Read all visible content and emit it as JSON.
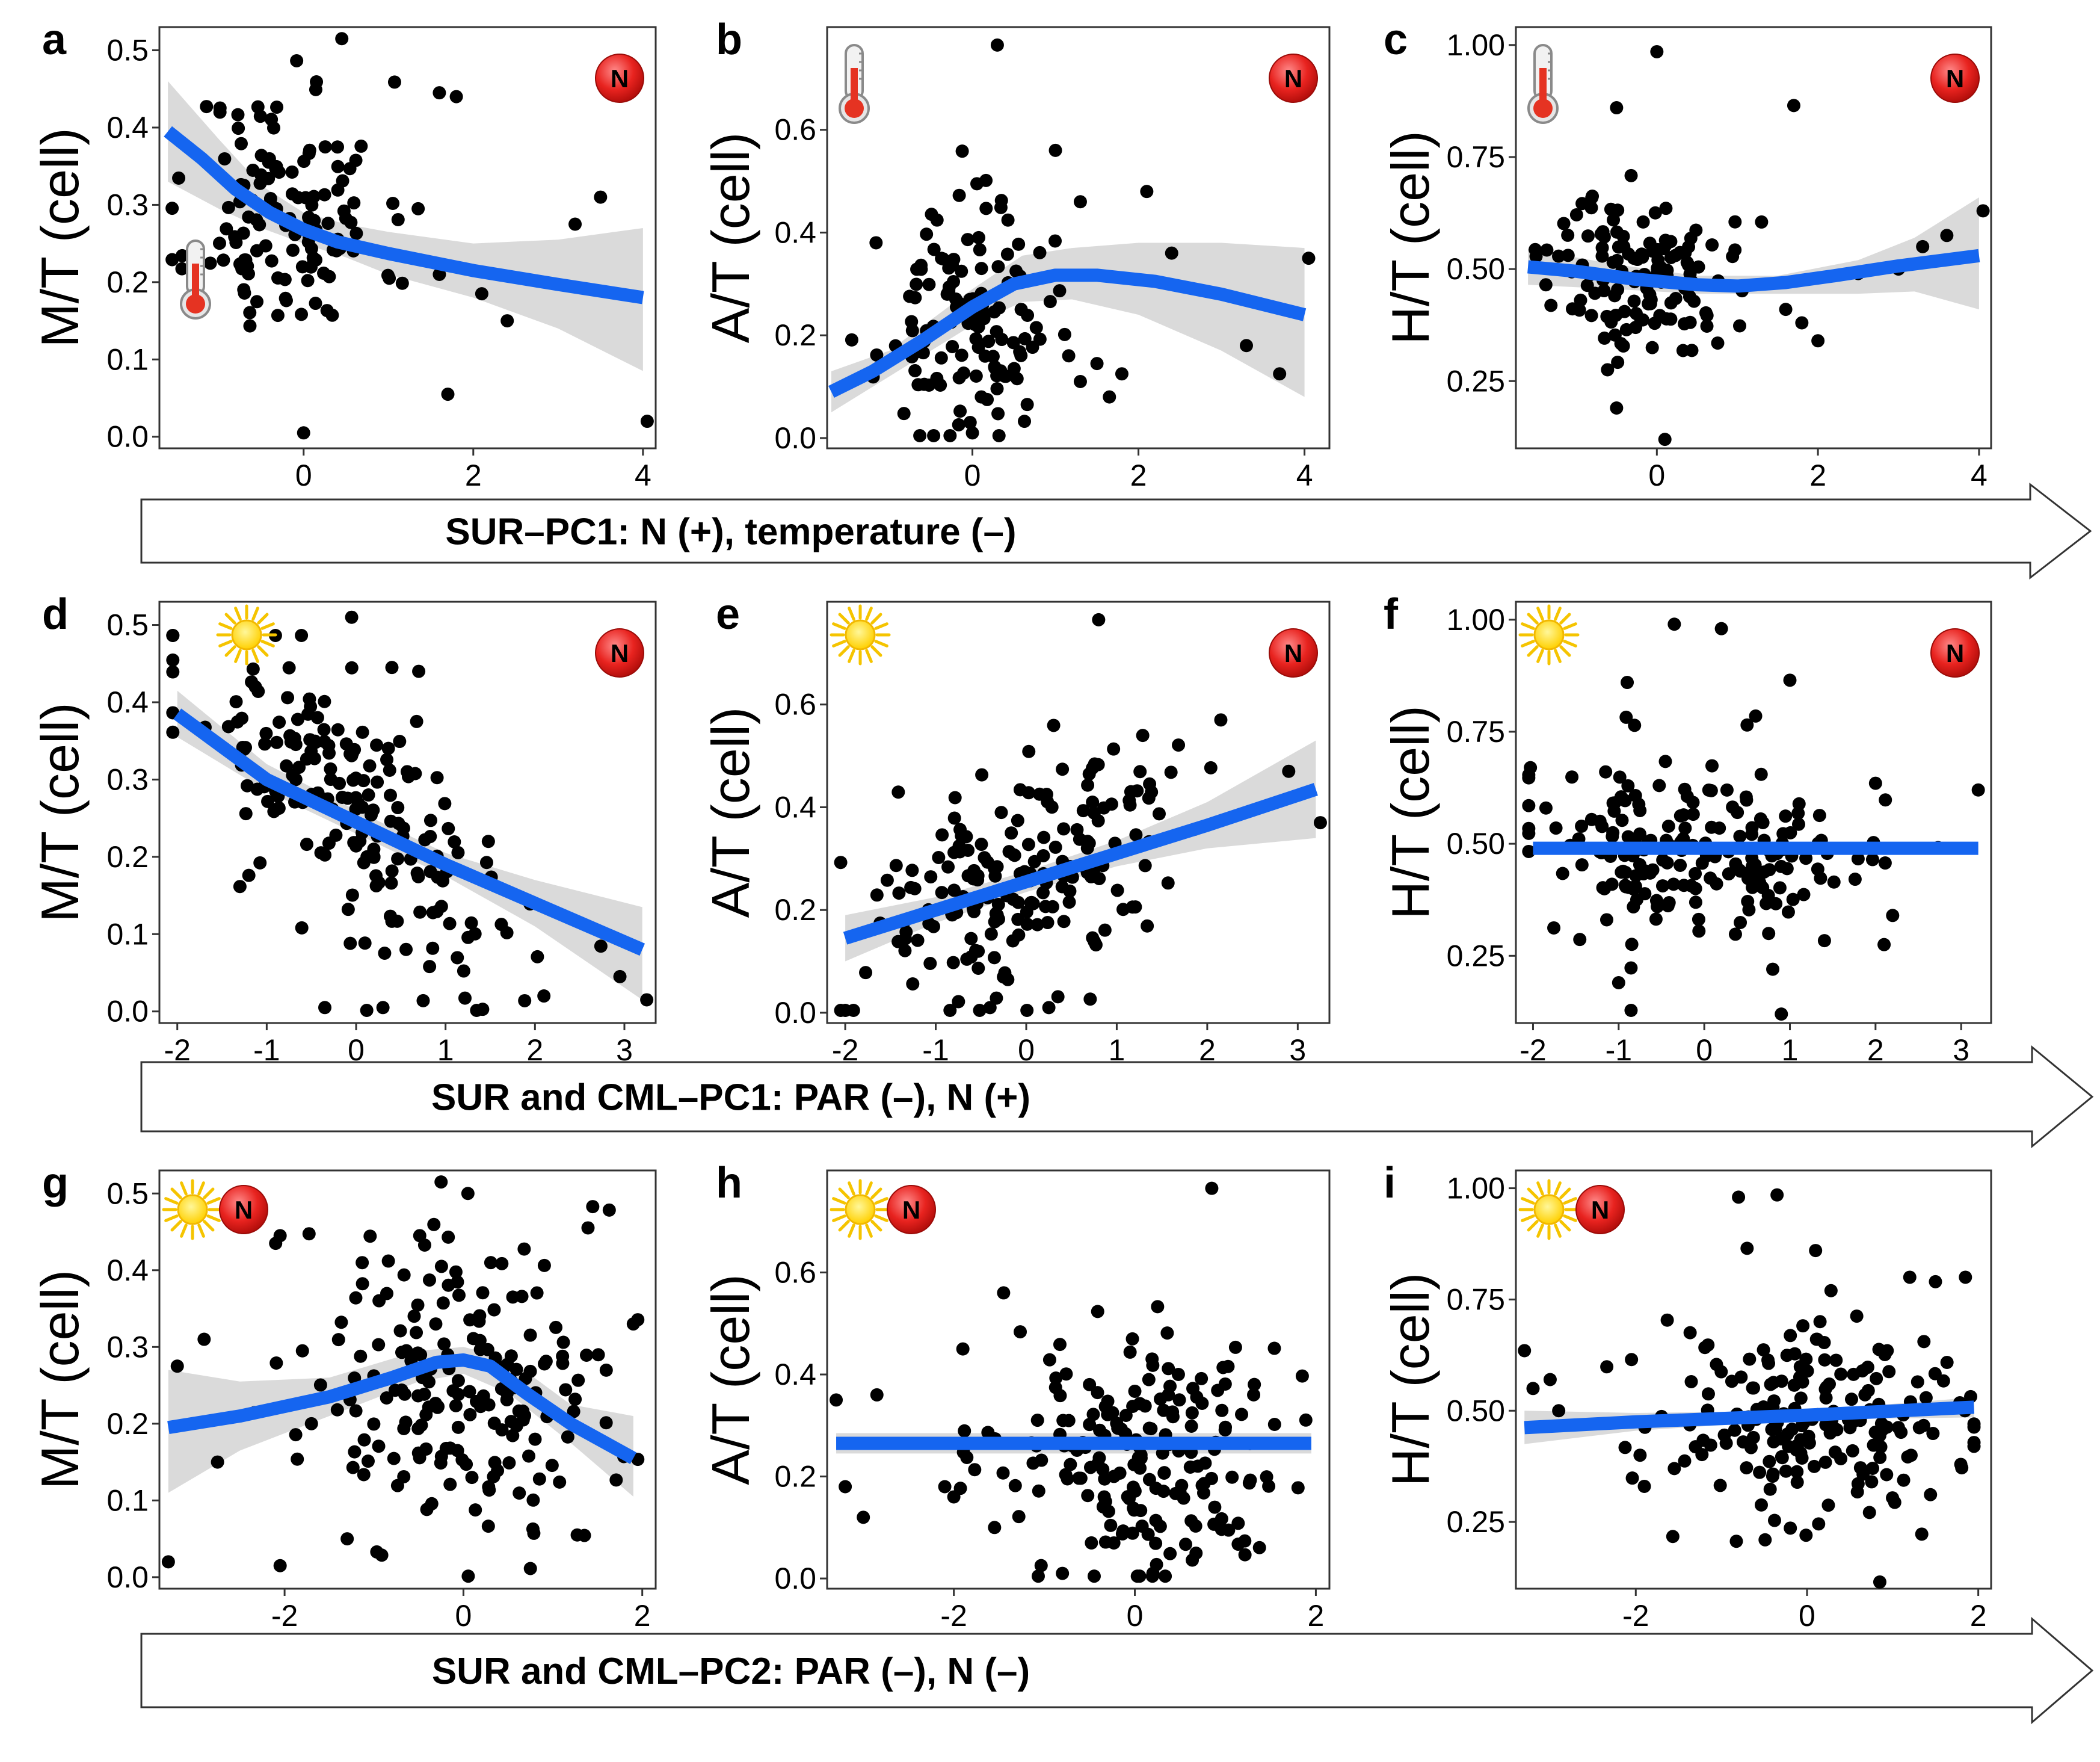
{
  "figure": {
    "arrows": [
      "SUR–PC1: N (+), temperature (–)",
      "SUR and CML–PC1: PAR (–), N (+)",
      "SUR and CML–PC2: PAR (–), N (–)"
    ],
    "n_badge": "N"
  },
  "colors": {
    "fit": "#1565F0",
    "band": "#D3D3D3",
    "point": "#000000",
    "frame": "#333333"
  },
  "chart_data": [
    {
      "panel": "a",
      "type": "scatter",
      "ylabel": "M/T (cell)",
      "xlim": [
        -1.7,
        4.15
      ],
      "ylim": [
        -0.015,
        0.53
      ],
      "xticks": [
        0,
        2,
        4
      ],
      "yticks": [
        "0.0",
        "0.1",
        "0.2",
        "0.3",
        "0.4",
        "0.5"
      ],
      "icons": [
        "thermometer",
        "N"
      ],
      "fit": [
        [
          -1.6,
          0.395
        ],
        [
          -1.2,
          0.36
        ],
        [
          -0.8,
          0.32
        ],
        [
          -0.4,
          0.29
        ],
        [
          0,
          0.268
        ],
        [
          0.4,
          0.252
        ],
        [
          1,
          0.237
        ],
        [
          2,
          0.215
        ],
        [
          3,
          0.197
        ],
        [
          4,
          0.18
        ]
      ],
      "band": [
        [
          -1.6,
          0.46,
          0.33
        ],
        [
          -1,
          0.385,
          0.295
        ],
        [
          -0.5,
          0.325,
          0.27
        ],
        [
          0,
          0.29,
          0.25
        ],
        [
          0.5,
          0.275,
          0.232
        ],
        [
          1,
          0.265,
          0.21
        ],
        [
          2,
          0.25,
          0.18
        ],
        [
          3,
          0.255,
          0.14
        ],
        [
          4,
          0.27,
          0.085
        ]
      ],
      "seed": 11,
      "n": 130,
      "xc": -0.2,
      "xs": 0.55,
      "yc": 0.29,
      "ys": 0.085,
      "extra": [
        [
          0.45,
          0.515
        ],
        [
          1.6,
          0.445
        ],
        [
          1.8,
          0.44
        ],
        [
          1.35,
          0.295
        ],
        [
          1.6,
          0.21
        ],
        [
          2.1,
          0.185
        ],
        [
          2.4,
          0.15
        ],
        [
          1.7,
          0.055
        ],
        [
          3.2,
          0.275
        ],
        [
          3.5,
          0.31
        ],
        [
          4.05,
          0.02
        ],
        [
          0,
          0.005
        ]
      ]
    },
    {
      "panel": "b",
      "type": "scatter",
      "ylabel": "A/T (cell)",
      "xlim": [
        -1.75,
        4.3
      ],
      "ylim": [
        -0.02,
        0.8
      ],
      "xticks": [
        0,
        2,
        4
      ],
      "yticks": [
        "0.0",
        "0.2",
        "0.4",
        "0.6"
      ],
      "icons": [
        "thermometer",
        "N"
      ],
      "fit": [
        [
          -1.7,
          0.09
        ],
        [
          -1.2,
          0.13
        ],
        [
          -0.6,
          0.19
        ],
        [
          0,
          0.255
        ],
        [
          0.5,
          0.3
        ],
        [
          1,
          0.317
        ],
        [
          1.5,
          0.317
        ],
        [
          2.2,
          0.305
        ],
        [
          3,
          0.28
        ],
        [
          4,
          0.24
        ]
      ],
      "band": [
        [
          -1.7,
          0.13,
          0.05
        ],
        [
          -1,
          0.17,
          0.12
        ],
        [
          0,
          0.29,
          0.22
        ],
        [
          0.6,
          0.355,
          0.265
        ],
        [
          1.2,
          0.37,
          0.27
        ],
        [
          2,
          0.38,
          0.24
        ],
        [
          3,
          0.38,
          0.17
        ],
        [
          4,
          0.37,
          0.08
        ]
      ],
      "seed": 23,
      "n": 130,
      "xc": -0.1,
      "xs": 0.5,
      "yc": 0.22,
      "ys": 0.11,
      "extra": [
        [
          0.3,
          0.765
        ],
        [
          1,
          0.56
        ],
        [
          1.3,
          0.46
        ],
        [
          2.1,
          0.48
        ],
        [
          2.4,
          0.36
        ],
        [
          1.3,
          0.11
        ],
        [
          1.5,
          0.145
        ],
        [
          1.65,
          0.08
        ],
        [
          1.8,
          0.125
        ],
        [
          3.3,
          0.18
        ],
        [
          3.7,
          0.125
        ],
        [
          4.05,
          0.35
        ],
        [
          0,
          0.01
        ]
      ]
    },
    {
      "panel": "c",
      "type": "scatter",
      "ylabel": "H/T (cell)",
      "xlim": [
        -1.75,
        4.15
      ],
      "ylim": [
        0.1,
        1.04
      ],
      "xticks": [
        0,
        2,
        4
      ],
      "yticks": [
        "0.25",
        "0.50",
        "0.75",
        "1.00"
      ],
      "icons": [
        "thermometer",
        "N"
      ],
      "fit": [
        [
          -1.6,
          0.505
        ],
        [
          -1,
          0.495
        ],
        [
          -0.3,
          0.478
        ],
        [
          0.5,
          0.465
        ],
        [
          1,
          0.462
        ],
        [
          1.6,
          0.47
        ],
        [
          2.2,
          0.485
        ],
        [
          3,
          0.507
        ],
        [
          4,
          0.53
        ]
      ],
      "band": [
        [
          -1.6,
          0.545,
          0.465
        ],
        [
          -0.5,
          0.51,
          0.455
        ],
        [
          0.5,
          0.485,
          0.445
        ],
        [
          1.5,
          0.485,
          0.445
        ],
        [
          2.5,
          0.52,
          0.445
        ],
        [
          3.2,
          0.57,
          0.45
        ],
        [
          4,
          0.66,
          0.41
        ]
      ],
      "seed": 37,
      "n": 130,
      "xc": -0.2,
      "xs": 0.55,
      "yc": 0.49,
      "ys": 0.09,
      "extra": [
        [
          0,
          0.985
        ],
        [
          -0.5,
          0.86
        ],
        [
          1.7,
          0.865
        ],
        [
          1.3,
          0.605
        ],
        [
          1.6,
          0.41
        ],
        [
          1.8,
          0.38
        ],
        [
          2,
          0.34
        ],
        [
          2.5,
          0.49
        ],
        [
          3,
          0.5
        ],
        [
          3.3,
          0.55
        ],
        [
          3.6,
          0.575
        ],
        [
          4.05,
          0.63
        ],
        [
          0.1,
          0.12
        ],
        [
          -0.5,
          0.19
        ]
      ]
    },
    {
      "panel": "d",
      "type": "scatter",
      "ylabel": "M/T (cell)",
      "xlim": [
        -2.2,
        3.35
      ],
      "ylim": [
        -0.015,
        0.53
      ],
      "xticks": [
        -2,
        -1,
        0,
        1,
        2,
        3
      ],
      "yticks": [
        "0.0",
        "0.1",
        "0.2",
        "0.3",
        "0.4",
        "0.5"
      ],
      "icons": [
        "sun",
        "N"
      ],
      "fit": [
        [
          -2,
          0.385
        ],
        [
          -1,
          0.3
        ],
        [
          0,
          0.245
        ],
        [
          1,
          0.19
        ],
        [
          2,
          0.14
        ],
        [
          3.2,
          0.08
        ]
      ],
      "band": [
        [
          -2,
          0.415,
          0.355
        ],
        [
          -1,
          0.32,
          0.285
        ],
        [
          0,
          0.26,
          0.23
        ],
        [
          1,
          0.205,
          0.175
        ],
        [
          2,
          0.17,
          0.11
        ],
        [
          3.2,
          0.135,
          0.015
        ]
      ],
      "seed": 53,
      "n": 190,
      "xc": 0,
      "xs": 1.0,
      "yc": 0.25,
      "ys": 0.085,
      "slope": -0.055,
      "extra": [
        [
          -0.05,
          0.51
        ],
        [
          0.3,
          0.005
        ],
        [
          -0.35,
          0.005
        ],
        [
          2.1,
          0.02
        ],
        [
          2.95,
          0.045
        ],
        [
          3.25,
          0.015
        ],
        [
          0.7,
          0.44
        ],
        [
          0.4,
          0.445
        ]
      ]
    },
    {
      "panel": "e",
      "type": "scatter",
      "ylabel": "A/T (cell)",
      "xlim": [
        -2.2,
        3.35
      ],
      "ylim": [
        -0.02,
        0.8
      ],
      "xticks": [
        -2,
        -1,
        0,
        1,
        2,
        3
      ],
      "yticks": [
        "0.0",
        "0.2",
        "0.4",
        "0.6"
      ],
      "icons": [
        "sun",
        "N"
      ],
      "fit": [
        [
          -2,
          0.145
        ],
        [
          -1,
          0.2
        ],
        [
          0,
          0.255
        ],
        [
          1,
          0.31
        ],
        [
          2,
          0.365
        ],
        [
          3.2,
          0.435
        ]
      ],
      "band": [
        [
          -2,
          0.19,
          0.1
        ],
        [
          -1,
          0.225,
          0.175
        ],
        [
          0,
          0.275,
          0.235
        ],
        [
          1,
          0.335,
          0.285
        ],
        [
          2,
          0.41,
          0.32
        ],
        [
          3.2,
          0.53,
          0.34
        ]
      ],
      "seed": 71,
      "n": 190,
      "xc": 0,
      "xs": 1.0,
      "yc": 0.26,
      "ys": 0.12,
      "slope": 0.05,
      "extra": [
        [
          0.8,
          0.765
        ],
        [
          -0.4,
          0.01
        ],
        [
          0.25,
          0.01
        ],
        [
          3.25,
          0.37
        ],
        [
          2.9,
          0.47
        ],
        [
          2.15,
          0.57
        ]
      ]
    },
    {
      "panel": "f",
      "type": "scatter",
      "ylabel": "H/T (cell)",
      "xlim": [
        -2.2,
        3.35
      ],
      "ylim": [
        0.1,
        1.04
      ],
      "xticks": [
        -2,
        -1,
        0,
        1,
        2,
        3
      ],
      "yticks": [
        "0.25",
        "0.50",
        "0.75",
        "1.00"
      ],
      "icons": [
        "sun",
        "N"
      ],
      "fit": [
        [
          -2,
          0.49
        ],
        [
          3.2,
          0.49
        ]
      ],
      "band": [
        [
          -2,
          0.5,
          0.48
        ],
        [
          3.2,
          0.5,
          0.48
        ]
      ],
      "seed": 89,
      "n": 190,
      "xc": 0,
      "xs": 1.0,
      "yc": 0.48,
      "ys": 0.1,
      "extra": [
        [
          -0.35,
          0.99
        ],
        [
          0.2,
          0.98
        ],
        [
          -0.9,
          0.86
        ],
        [
          1,
          0.865
        ],
        [
          0.6,
          0.785
        ],
        [
          0.5,
          0.765
        ],
        [
          0.9,
          0.12
        ],
        [
          0.8,
          0.22
        ],
        [
          -1,
          0.19
        ],
        [
          3.2,
          0.62
        ],
        [
          2,
          0.635
        ],
        [
          2.2,
          0.34
        ],
        [
          2.1,
          0.275
        ]
      ]
    },
    {
      "panel": "g",
      "type": "scatter",
      "ylabel": "M/T (cell)",
      "xlim": [
        -3.4,
        2.15
      ],
      "ylim": [
        -0.015,
        0.53
      ],
      "xticks": [
        -2,
        0,
        2
      ],
      "yticks": [
        "0.0",
        "0.1",
        "0.2",
        "0.3",
        "0.4",
        "0.5"
      ],
      "icons": [
        "sun",
        "N"
      ],
      "fit": [
        [
          -3.3,
          0.195
        ],
        [
          -2.5,
          0.21
        ],
        [
          -1.5,
          0.235
        ],
        [
          -0.8,
          0.26
        ],
        [
          -0.3,
          0.28
        ],
        [
          0,
          0.283
        ],
        [
          0.3,
          0.275
        ],
        [
          0.7,
          0.24
        ],
        [
          1.2,
          0.2
        ],
        [
          1.9,
          0.155
        ]
      ],
      "band": [
        [
          -3.3,
          0.27,
          0.11
        ],
        [
          -2.5,
          0.255,
          0.165
        ],
        [
          -1.5,
          0.26,
          0.21
        ],
        [
          -0.5,
          0.295,
          0.255
        ],
        [
          0,
          0.3,
          0.265
        ],
        [
          0.5,
          0.285,
          0.24
        ],
        [
          1.2,
          0.225,
          0.175
        ],
        [
          1.9,
          0.21,
          0.105
        ]
      ],
      "seed": 101,
      "n": 190,
      "xc": 0,
      "xs": 0.85,
      "yc": 0.25,
      "ys": 0.1,
      "extra": [
        [
          -3.2,
          0.275
        ],
        [
          -3.3,
          0.02
        ],
        [
          -2.9,
          0.31
        ],
        [
          -2.75,
          0.15
        ],
        [
          -2.05,
          0.445
        ],
        [
          -2.1,
          0.435
        ],
        [
          -2.05,
          0.015
        ],
        [
          -1.7,
          0.2
        ],
        [
          -1.3,
          0.05
        ],
        [
          -0.25,
          0.515
        ],
        [
          0.05,
          0.5
        ],
        [
          1.9,
          0.33
        ]
      ]
    },
    {
      "panel": "h",
      "type": "scatter",
      "ylabel": "A/T (cell)",
      "xlim": [
        -3.4,
        2.15
      ],
      "ylim": [
        -0.02,
        0.8
      ],
      "xticks": [
        -2,
        0,
        2
      ],
      "yticks": [
        "0.0",
        "0.2",
        "0.4",
        "0.6"
      ],
      "icons": [
        "sun",
        "N"
      ],
      "fit": [
        [
          -3.3,
          0.265
        ],
        [
          1.95,
          0.265
        ]
      ],
      "band": [
        [
          -3.3,
          0.285,
          0.245
        ],
        [
          1.95,
          0.285,
          0.245
        ]
      ],
      "seed": 131,
      "n": 190,
      "xc": 0,
      "xs": 0.8,
      "yc": 0.24,
      "ys": 0.12,
      "extra": [
        [
          0.85,
          0.765
        ],
        [
          -3.3,
          0.35
        ],
        [
          -3.2,
          0.18
        ],
        [
          -3,
          0.12
        ],
        [
          -2.85,
          0.36
        ],
        [
          -2.1,
          0.18
        ],
        [
          -2,
          0.16
        ],
        [
          -1.9,
          0.45
        ],
        [
          -1.55,
          0.1
        ],
        [
          -1.45,
          0.56
        ],
        [
          0.2,
          0.01
        ],
        [
          -0.8,
          0.01
        ]
      ]
    },
    {
      "panel": "i",
      "type": "scatter",
      "ylabel": "H/T (cell)",
      "xlim": [
        -3.4,
        2.15
      ],
      "ylim": [
        0.1,
        1.04
      ],
      "xticks": [
        -2,
        0,
        2
      ],
      "yticks": [
        "0.25",
        "0.50",
        "0.75",
        "1.00"
      ],
      "icons": [
        "sun",
        "N"
      ],
      "fit": [
        [
          -3.3,
          0.462
        ],
        [
          -2,
          0.475
        ],
        [
          0,
          0.49
        ],
        [
          1.95,
          0.508
        ]
      ],
      "band": [
        [
          -3.3,
          0.5,
          0.425
        ],
        [
          -2,
          0.495,
          0.455
        ],
        [
          0,
          0.5,
          0.48
        ],
        [
          1.95,
          0.53,
          0.485
        ]
      ],
      "seed": 151,
      "n": 190,
      "xc": 0,
      "xs": 0.85,
      "yc": 0.47,
      "ys": 0.1,
      "extra": [
        [
          -0.8,
          0.98
        ],
        [
          -0.35,
          0.985
        ],
        [
          -0.7,
          0.865
        ],
        [
          0.1,
          0.86
        ],
        [
          -3.3,
          0.635
        ],
        [
          -3.2,
          0.55
        ],
        [
          -3,
          0.57
        ],
        [
          -2.9,
          0.5
        ],
        [
          -2.05,
          0.615
        ],
        [
          -1.95,
          0.4
        ],
        [
          -1.9,
          0.33
        ],
        [
          -1.55,
          0.37
        ],
        [
          0.85,
          0.115
        ],
        [
          1.85,
          0.8
        ],
        [
          1.2,
          0.8
        ],
        [
          1.5,
          0.79
        ],
        [
          1.95,
          0.42
        ]
      ]
    }
  ]
}
